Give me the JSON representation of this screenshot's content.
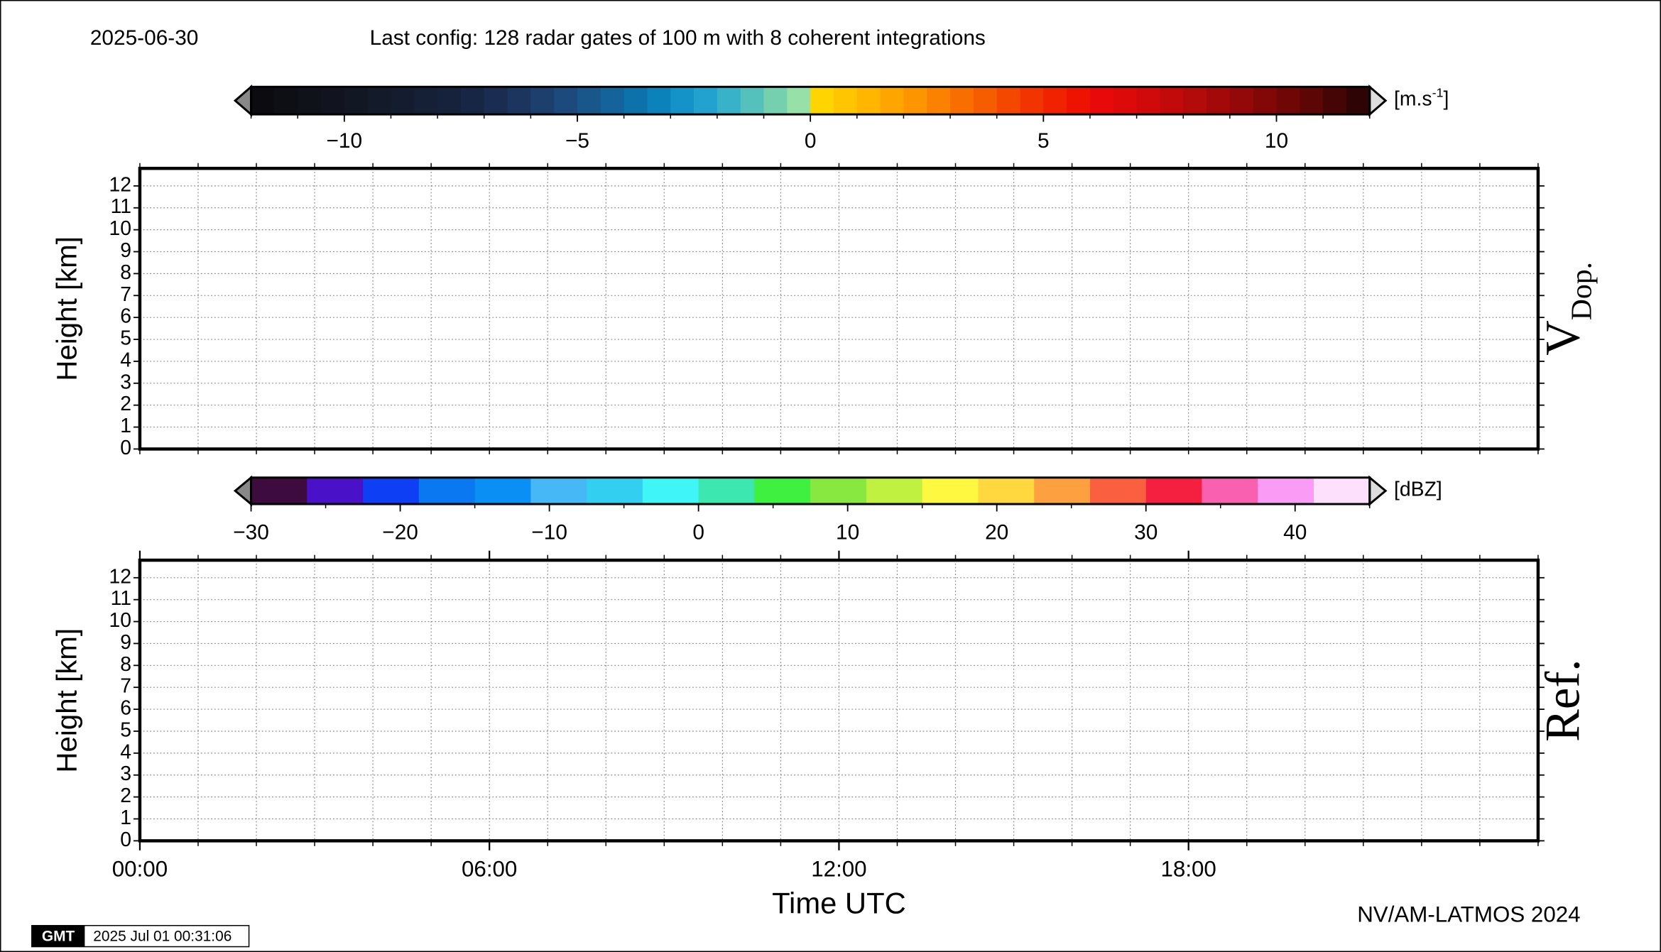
{
  "header": {
    "date": "2025-06-30",
    "config": "Last config: 128 radar gates of 100 m with 8 coherent integrations"
  },
  "footer": {
    "credit": "NV/AM-LATMOS 2024",
    "logo": "GMT",
    "timestamp": "2025 Jul 01 00:31:06"
  },
  "chart_data": [
    {
      "type": "heatmap",
      "panel_label": "V",
      "panel_label_sub": "Dop.",
      "ylabel": "Height [km]",
      "ylim": [
        0,
        12.8
      ],
      "yticks": [
        0,
        1,
        2,
        3,
        4,
        5,
        6,
        7,
        8,
        9,
        10,
        11,
        12
      ],
      "xlim": [
        0,
        24
      ],
      "xgrid": [
        0,
        1,
        2,
        3,
        4,
        5,
        6,
        7,
        8,
        9,
        10,
        11,
        12,
        13,
        14,
        15,
        16,
        17,
        18,
        19,
        20,
        21,
        22,
        23,
        24
      ],
      "grid": true,
      "colorbar": {
        "range": [
          -12,
          12
        ],
        "ticks": [
          {
            "value": -10,
            "label": "−10"
          },
          {
            "value": -5,
            "label": "−5"
          },
          0,
          5,
          10
        ],
        "minor_ticks": [
          -12,
          -11,
          -10,
          -9,
          -8,
          -7,
          -6,
          -5,
          -4,
          -3,
          -2,
          -1,
          0,
          1,
          2,
          3,
          4,
          5,
          6,
          7,
          8,
          9,
          10,
          11,
          12
        ],
        "unit": "[m.s",
        "unit_sup": "-1",
        "unit_end": "]",
        "colors": [
          "#0c0c10",
          "#0e0f15",
          "#10121a",
          "#11141f",
          "#121724",
          "#131a2a",
          "#141d30",
          "#151f36",
          "#16223c",
          "#172644",
          "#1a2c52",
          "#1c355f",
          "#1d3f6d",
          "#1c4a7c",
          "#19568a",
          "#14639a",
          "#0d72aa",
          "#0c82bb",
          "#1393c8",
          "#22a3cf",
          "#38b2c8",
          "#55c1bc",
          "#75d0b0",
          "#97e0a8",
          "#ffd500",
          "#ffc500",
          "#ffb600",
          "#ffa500",
          "#fd9500",
          "#fb8200",
          "#f86f00",
          "#f65c00",
          "#f44800",
          "#f23500",
          "#f02200",
          "#ee1200",
          "#e80a0a",
          "#dd0a0a",
          "#d00a0a",
          "#c20a0a",
          "#b30a0a",
          "#a30909",
          "#930909",
          "#820808",
          "#700707",
          "#5c0606",
          "#460505",
          "#2e0404"
        ]
      }
    },
    {
      "type": "heatmap",
      "panel_label": "Ref.",
      "ylabel": "Height [km]",
      "xlabel": "Time UTC",
      "ylim": [
        0,
        12.8
      ],
      "yticks": [
        0,
        1,
        2,
        3,
        4,
        5,
        6,
        7,
        8,
        9,
        10,
        11,
        12
      ],
      "xlim": [
        0,
        24
      ],
      "xgrid": [
        0,
        1,
        2,
        3,
        4,
        5,
        6,
        7,
        8,
        9,
        10,
        11,
        12,
        13,
        14,
        15,
        16,
        17,
        18,
        19,
        20,
        21,
        22,
        23,
        24
      ],
      "xticks": [
        {
          "value": 0,
          "label": "00:00"
        },
        {
          "value": 6,
          "label": "06:00"
        },
        {
          "value": 12,
          "label": "12:00"
        },
        {
          "value": 18,
          "label": "18:00"
        }
      ],
      "grid": true,
      "colorbar": {
        "range": [
          -30,
          45
        ],
        "ticks": [
          {
            "value": -30,
            "label": "−30"
          },
          {
            "value": -20,
            "label": "−20"
          },
          {
            "value": -10,
            "label": "−10"
          },
          0,
          10,
          20,
          30,
          40
        ],
        "minor_ticks": [
          -30,
          -25,
          -20,
          -15,
          -10,
          -5,
          0,
          5,
          10,
          15,
          20,
          25,
          30,
          35,
          40,
          45
        ],
        "unit": "[dBZ]",
        "colors": [
          "#3d0b3d",
          "#4a12c8",
          "#0f3ff5",
          "#0a78f0",
          "#0a8ff5",
          "#45b8f5",
          "#33cff0",
          "#40f5f5",
          "#3ce8b0",
          "#40f040",
          "#88e840",
          "#c0f040",
          "#fff840",
          "#ffd840",
          "#fca040",
          "#fa6040",
          "#f52040",
          "#fa60b0",
          "#fa9cf5",
          "#fce0fc"
        ]
      }
    }
  ]
}
